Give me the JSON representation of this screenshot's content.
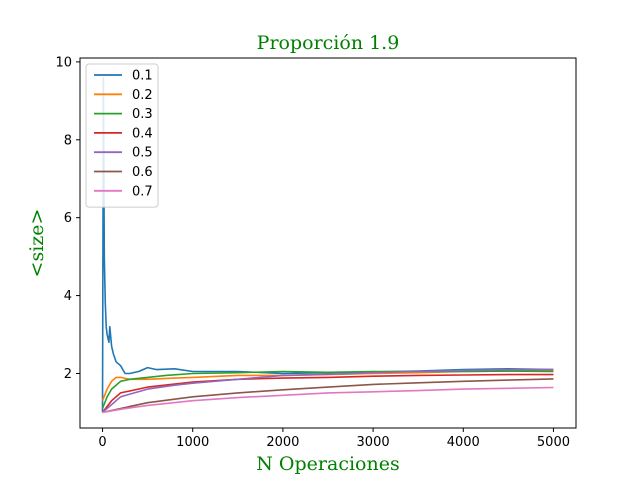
{
  "chart_data": {
    "type": "line",
    "title": "Proporción 1.9",
    "xlabel": "N Operaciones",
    "ylabel": "<size>",
    "xlim": [
      -250,
      5250
    ],
    "ylim": [
      0.6,
      10.1
    ],
    "xticks": [
      0,
      1000,
      2000,
      3000,
      4000,
      5000
    ],
    "yticks": [
      2,
      4,
      6,
      8,
      10
    ],
    "legend": "top-left",
    "grid": false,
    "series": [
      {
        "name": "0.1",
        "color": "#1f77b4",
        "x": [
          0,
          10,
          20,
          30,
          40,
          50,
          60,
          70,
          80,
          100,
          120,
          150,
          200,
          250,
          300,
          400,
          500,
          600,
          800,
          1000,
          1500,
          2000,
          2500,
          3000,
          3500,
          4000,
          4500,
          5000
        ],
        "y": [
          1.0,
          9.6,
          5.0,
          3.8,
          3.2,
          3.0,
          2.9,
          2.8,
          3.2,
          2.7,
          2.5,
          2.3,
          2.2,
          2.0,
          2.0,
          2.05,
          2.15,
          2.1,
          2.12,
          2.05,
          2.05,
          2.0,
          2.02,
          2.04,
          2.06,
          2.1,
          2.12,
          2.1
        ]
      },
      {
        "name": "0.2",
        "color": "#ff7f0e",
        "x": [
          0,
          50,
          100,
          150,
          200,
          300,
          500,
          800,
          1000,
          1500,
          2000,
          2500,
          3000,
          3500,
          4000,
          4500,
          5000
        ],
        "y": [
          1.3,
          1.6,
          1.8,
          1.9,
          1.9,
          1.85,
          1.85,
          1.88,
          1.9,
          1.95,
          1.95,
          1.97,
          2.0,
          2.02,
          2.05,
          2.06,
          2.08
        ]
      },
      {
        "name": "0.3",
        "color": "#2ca02c",
        "x": [
          0,
          50,
          100,
          200,
          300,
          500,
          700,
          1000,
          1500,
          2000,
          2500,
          3000,
          3500,
          4000,
          4500,
          5000
        ],
        "y": [
          1.1,
          1.4,
          1.6,
          1.8,
          1.85,
          1.9,
          1.95,
          2.0,
          2.02,
          2.05,
          2.03,
          2.05,
          2.05,
          2.05,
          2.06,
          2.05
        ]
      },
      {
        "name": "0.4",
        "color": "#d62728",
        "x": [
          0,
          100,
          200,
          500,
          1000,
          1500,
          2000,
          2500,
          3000,
          3500,
          4000,
          4500,
          5000
        ],
        "y": [
          1.0,
          1.3,
          1.5,
          1.65,
          1.78,
          1.85,
          1.88,
          1.9,
          1.93,
          1.95,
          1.96,
          1.97,
          1.97
        ]
      },
      {
        "name": "0.5",
        "color": "#9467bd",
        "x": [
          0,
          100,
          200,
          500,
          800,
          1000,
          1500,
          2000,
          2500,
          3000,
          3500,
          4000,
          4500,
          5000
        ],
        "y": [
          1.0,
          1.2,
          1.4,
          1.6,
          1.7,
          1.75,
          1.85,
          1.95,
          1.98,
          2.02,
          2.05,
          2.08,
          2.1,
          2.1
        ]
      },
      {
        "name": "0.6",
        "color": "#8c564b",
        "x": [
          0,
          200,
          500,
          1000,
          1500,
          2000,
          2500,
          3000,
          3500,
          4000,
          4500,
          5000
        ],
        "y": [
          1.0,
          1.1,
          1.25,
          1.4,
          1.5,
          1.58,
          1.65,
          1.72,
          1.76,
          1.8,
          1.83,
          1.86
        ]
      },
      {
        "name": "0.7",
        "color": "#e377c2",
        "x": [
          0,
          200,
          500,
          1000,
          1500,
          2000,
          2500,
          3000,
          3500,
          4000,
          4500,
          5000
        ],
        "y": [
          1.0,
          1.08,
          1.18,
          1.3,
          1.38,
          1.44,
          1.5,
          1.53,
          1.56,
          1.6,
          1.62,
          1.64
        ]
      }
    ]
  }
}
